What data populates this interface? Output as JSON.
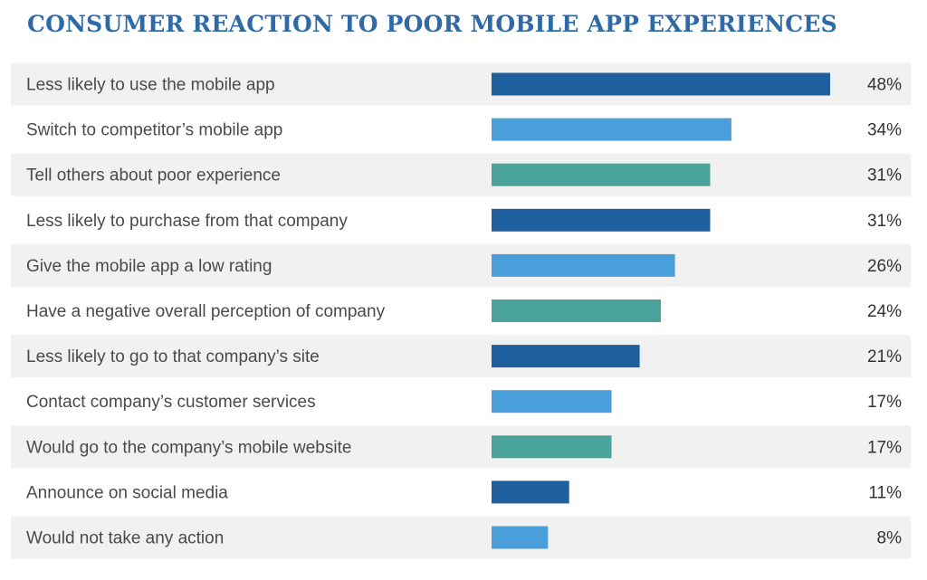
{
  "chart_data": {
    "type": "bar",
    "orientation": "horizontal",
    "title": "CONSUMER REACTION TO POOR MOBILE APP EXPERIENCES",
    "xlabel": "",
    "ylabel": "",
    "xlim": [
      0,
      48
    ],
    "grid": false,
    "legend": "none",
    "categories": [
      "Less likely to use the mobile app",
      "Switch to competitor’s mobile app",
      "Tell others about poor experience",
      "Less likely to purchase from that company",
      "Give the mobile app a low rating",
      "Have a negative overall perception of company",
      "Less likely to go to that company’s site",
      "Contact company’s customer services",
      "Would go to the company’s mobile website",
      "Announce on social media",
      "Would not take any action"
    ],
    "values": [
      48,
      34,
      31,
      31,
      26,
      24,
      21,
      17,
      17,
      11,
      8
    ],
    "value_labels": [
      "48%",
      "34%",
      "31%",
      "31%",
      "26%",
      "24%",
      "21%",
      "17%",
      "17%",
      "11%",
      "8%"
    ],
    "bar_colors": [
      "#1f5f9e",
      "#4a9fdb",
      "#4aa39a",
      "#1f5f9e",
      "#4a9fdb",
      "#4aa39a",
      "#1f5f9e",
      "#4a9fdb",
      "#4aa39a",
      "#1f5f9e",
      "#4a9fdb"
    ]
  },
  "colors": {
    "title": "#2f6aa8",
    "row_band": "#f1f1f1",
    "label_text": "#4a4a4a",
    "value_text": "#333333"
  }
}
